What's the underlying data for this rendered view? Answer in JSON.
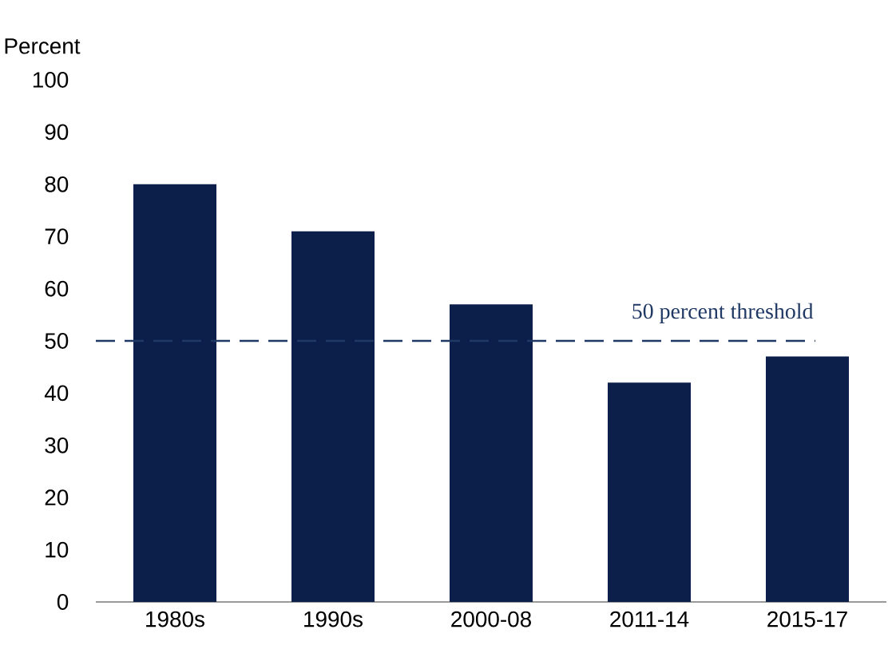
{
  "chart_data": {
    "type": "bar",
    "ylabel": "Percent",
    "categories": [
      "1980s",
      "1990s",
      "2000-08",
      "2011-14",
      "2015-17"
    ],
    "values": [
      80,
      71,
      57,
      42,
      47
    ],
    "color": "#0c1f4b",
    "ylim": [
      0,
      100
    ],
    "yticks": [
      0,
      10,
      20,
      30,
      40,
      50,
      60,
      70,
      80,
      90,
      100
    ],
    "grid": false,
    "ref_lines": [
      {
        "axis": "y",
        "value": 50,
        "label": "50 percent threshold",
        "color": "#1f3864",
        "line_style": "dashed"
      }
    ]
  }
}
